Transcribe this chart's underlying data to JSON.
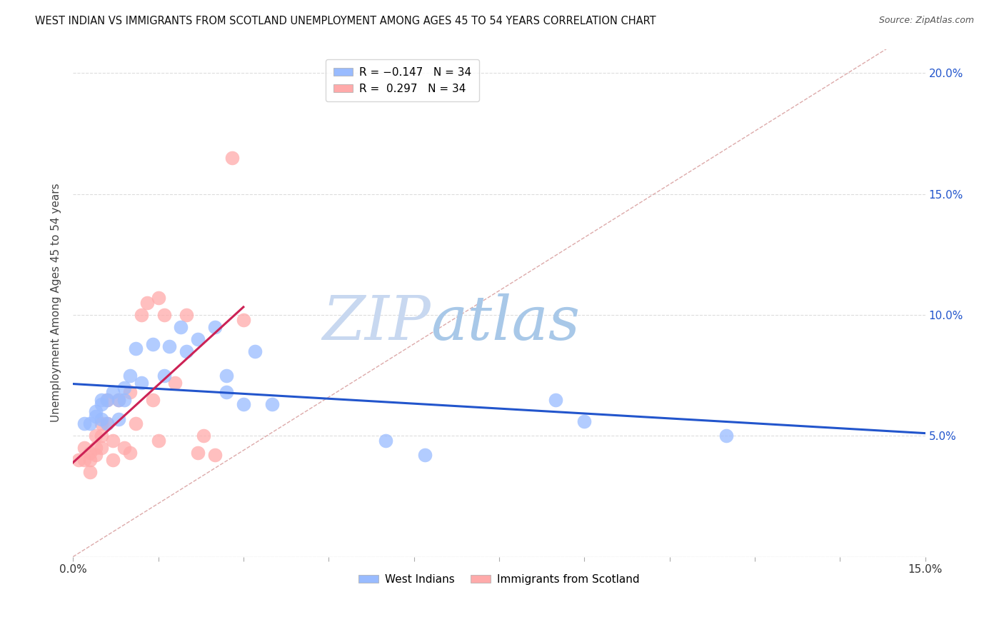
{
  "title": "WEST INDIAN VS IMMIGRANTS FROM SCOTLAND UNEMPLOYMENT AMONG AGES 45 TO 54 YEARS CORRELATION CHART",
  "source": "Source: ZipAtlas.com",
  "ylabel": "Unemployment Among Ages 45 to 54 years",
  "xlim": [
    0.0,
    0.15
  ],
  "ylim": [
    0.0,
    0.21
  ],
  "xticks": [
    0.0,
    0.015,
    0.03,
    0.045,
    0.06,
    0.075,
    0.09,
    0.105,
    0.12,
    0.135,
    0.15
  ],
  "yticks": [
    0.0,
    0.05,
    0.1,
    0.15,
    0.2
  ],
  "west_indians_x": [
    0.002,
    0.003,
    0.004,
    0.004,
    0.005,
    0.005,
    0.005,
    0.006,
    0.006,
    0.007,
    0.008,
    0.008,
    0.009,
    0.009,
    0.01,
    0.011,
    0.012,
    0.014,
    0.016,
    0.017,
    0.019,
    0.02,
    0.022,
    0.025,
    0.027,
    0.027,
    0.03,
    0.032,
    0.035,
    0.055,
    0.062,
    0.085,
    0.09,
    0.115
  ],
  "west_indians_y": [
    0.055,
    0.055,
    0.06,
    0.058,
    0.057,
    0.063,
    0.065,
    0.055,
    0.065,
    0.068,
    0.057,
    0.065,
    0.07,
    0.065,
    0.075,
    0.086,
    0.072,
    0.088,
    0.075,
    0.087,
    0.095,
    0.085,
    0.09,
    0.095,
    0.075,
    0.068,
    0.063,
    0.085,
    0.063,
    0.048,
    0.042,
    0.065,
    0.056,
    0.05
  ],
  "scotland_x": [
    0.001,
    0.002,
    0.002,
    0.003,
    0.003,
    0.003,
    0.004,
    0.004,
    0.004,
    0.005,
    0.005,
    0.005,
    0.006,
    0.006,
    0.007,
    0.007,
    0.008,
    0.009,
    0.01,
    0.01,
    0.011,
    0.012,
    0.013,
    0.014,
    0.015,
    0.015,
    0.016,
    0.018,
    0.02,
    0.022,
    0.023,
    0.025,
    0.028,
    0.03
  ],
  "scotland_y": [
    0.04,
    0.04,
    0.045,
    0.035,
    0.04,
    0.043,
    0.042,
    0.045,
    0.05,
    0.045,
    0.05,
    0.055,
    0.055,
    0.065,
    0.04,
    0.048,
    0.065,
    0.045,
    0.068,
    0.043,
    0.055,
    0.1,
    0.105,
    0.065,
    0.107,
    0.048,
    0.1,
    0.072,
    0.1,
    0.043,
    0.05,
    0.042,
    0.165,
    0.098
  ],
  "blue_color": "#99bbff",
  "pink_color": "#ffaaaa",
  "blue_line_color": "#2255cc",
  "pink_line_color": "#cc2255",
  "diag_color": "#ddaaaa",
  "watermark_zip_color": "#c8d8f0",
  "watermark_atlas_color": "#a8c8e8",
  "background_color": "#ffffff",
  "grid_color": "#dddddd"
}
